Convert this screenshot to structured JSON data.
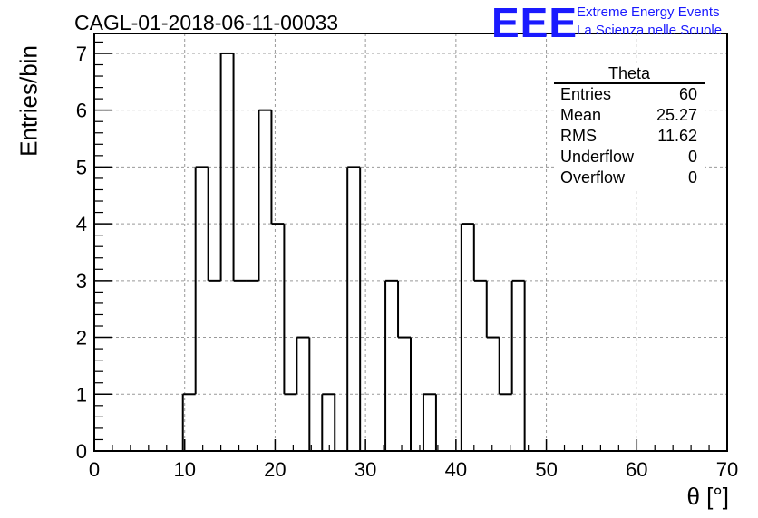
{
  "header": {
    "title": "CAGL-01-2018-06-11-00033",
    "logo": "EEE",
    "logo_line1": "Extreme Energy Events",
    "logo_line2": "La Scienza nelle Scuole"
  },
  "stats": {
    "title": "Theta",
    "rows": [
      {
        "label": "Entries",
        "value": "60"
      },
      {
        "label": "Mean",
        "value": "25.27"
      },
      {
        "label": "RMS",
        "value": "11.62"
      },
      {
        "label": "Underflow",
        "value": "0"
      },
      {
        "label": "Overflow",
        "value": "0"
      }
    ]
  },
  "chart_data": {
    "type": "bar",
    "style": "step-histogram",
    "title": "CAGL-01-2018-06-11-00033",
    "xlabel": "θ [°]",
    "ylabel": "Entries/bin",
    "bin_edges": [
      0,
      1.4,
      2.8,
      4.2,
      5.6,
      7,
      8.4,
      9.8,
      11.2,
      12.6,
      14,
      15.4,
      16.8,
      18.2,
      19.6,
      21,
      22.4,
      23.8,
      25.2,
      26.6,
      28,
      29.4,
      30.8,
      32.2,
      33.6,
      35,
      36.4,
      37.8,
      39.2,
      40.6,
      42,
      43.4,
      44.8,
      46.2,
      47.6,
      49,
      50.4,
      51.8,
      53.2,
      54.6,
      56,
      57.4,
      58.8,
      60.2,
      61.6,
      63,
      64.4,
      65.8,
      67.2,
      68.6,
      70
    ],
    "values": [
      0,
      0,
      0,
      0,
      0,
      0,
      0,
      1,
      5,
      3,
      7,
      3,
      3,
      6,
      4,
      1,
      2,
      0,
      1,
      0,
      5,
      0,
      0,
      3,
      2,
      0,
      1,
      0,
      0,
      4,
      3,
      2,
      1,
      3,
      0,
      0,
      0,
      0,
      0,
      0,
      0,
      0,
      0,
      0,
      0,
      0,
      0,
      0,
      0,
      0
    ],
    "xlim": [
      0,
      70
    ],
    "ylim": [
      0,
      7.35
    ],
    "x_ticks": [
      "0",
      "10",
      "20",
      "30",
      "40",
      "50",
      "60",
      "70"
    ],
    "y_ticks": [
      "0",
      "1",
      "2",
      "3",
      "4",
      "5",
      "6",
      "7"
    ],
    "grid": true,
    "legend": "top-right stats box"
  }
}
